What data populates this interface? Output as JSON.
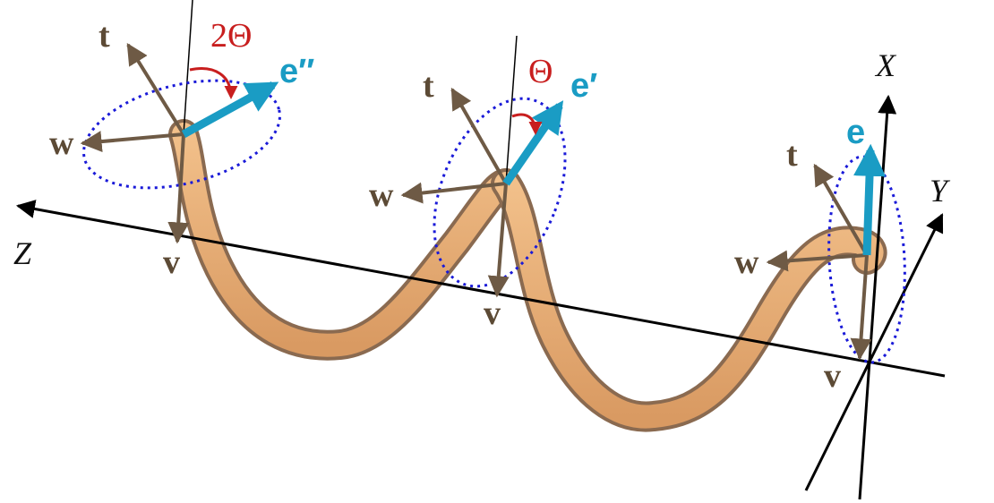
{
  "diagram": {
    "axes": {
      "x": "X",
      "y": "Y",
      "z": "Z"
    },
    "frames": [
      {
        "t": "t",
        "w": "w",
        "v": "v",
        "e": "e″",
        "angle": "2Θ"
      },
      {
        "t": "t",
        "w": "w",
        "v": "v",
        "e": "e′",
        "angle": "Θ"
      },
      {
        "t": "t",
        "w": "w",
        "v": "v",
        "e": "e"
      }
    ],
    "colors": {
      "tube": "#e8a870",
      "tube_shadow": "#8a6a50",
      "frame_vectors": "#6e5a45",
      "e_vector": "#1a9cc4",
      "angle_arc": "#c81e1e",
      "ellipse": "#1a1ad8",
      "axes": "#000000"
    }
  }
}
